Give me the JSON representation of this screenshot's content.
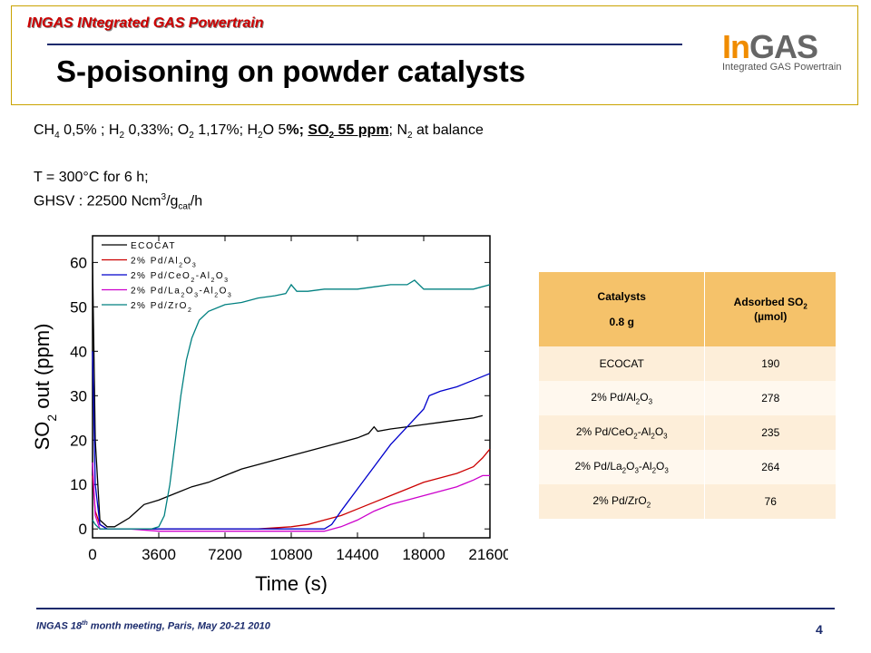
{
  "header": {
    "project_label": "INGAS INtegrated GAS Powertrain",
    "title": "S-poisoning on powder catalysts",
    "logo_in": "In",
    "logo_gas": "GAS",
    "logo_sub": "Integrated GAS Powertrain"
  },
  "conditions": {
    "line1_parts": [
      "CH",
      "4",
      " 0,5% ; H",
      "2",
      " 0,33%; O",
      "2",
      " 1,17%; H",
      "2",
      "O 5",
      "%; ",
      "SO",
      "2",
      " 55 ppm",
      "; N",
      "2",
      " at balance"
    ],
    "line2": "T = 300°C for 6 h;",
    "line3_parts": [
      "GHSV : 22500 Ncm",
      "3",
      "/g",
      "cat",
      "/h"
    ]
  },
  "table": {
    "col1_header_line1": "Catalysts",
    "col1_header_line2": "0.8 g",
    "col2_header_line1": "Adsorbed SO",
    "col2_header_sub": "2",
    "col2_header_line2": "(µmol)",
    "rows": [
      {
        "catalyst": [
          "ECOCAT"
        ],
        "value": "190"
      },
      {
        "catalyst": [
          "2% Pd/Al",
          "2",
          "O",
          "3"
        ],
        "value": "278"
      },
      {
        "catalyst": [
          "2% Pd/CeO",
          "2",
          "-Al",
          "2",
          "O",
          "3"
        ],
        "value": "235"
      },
      {
        "catalyst": [
          "2% Pd/La",
          "2",
          "O",
          "3",
          "-Al",
          "2",
          "O",
          "3"
        ],
        "value": "264"
      },
      {
        "catalyst": [
          "2% Pd/ZrO",
          "2"
        ],
        "value": "76"
      }
    ]
  },
  "footer": {
    "text_before": "INGAS 18",
    "text_sup": "th",
    "text_after": " month meeting, Paris, May 20-21 2010",
    "page_number": "4"
  },
  "chart_data": {
    "type": "line",
    "xlabel": "Time (s)",
    "ylabel_main": "SO",
    "ylabel_sub": "2",
    "ylabel_rest": " out (ppm)",
    "xlim": [
      0,
      21600
    ],
    "ylim": [
      -2,
      66
    ],
    "xticks": [
      0,
      3600,
      7200,
      10800,
      14400,
      18000,
      21600
    ],
    "yticks": [
      0,
      10,
      20,
      30,
      40,
      50,
      60
    ],
    "legend_position": "top-left",
    "series": [
      {
        "name_parts": [
          "ECOCAT"
        ],
        "color": "#000000",
        "points": [
          [
            0,
            60
          ],
          [
            150,
            20
          ],
          [
            400,
            2
          ],
          [
            800,
            0.5
          ],
          [
            1200,
            0.5
          ],
          [
            1600,
            1.5
          ],
          [
            2000,
            2.5
          ],
          [
            2400,
            4
          ],
          [
            2800,
            5.5
          ],
          [
            3600,
            6.5
          ],
          [
            4500,
            8
          ],
          [
            5400,
            9.5
          ],
          [
            6300,
            10.5
          ],
          [
            7200,
            12
          ],
          [
            8100,
            13.5
          ],
          [
            9000,
            14.5
          ],
          [
            9900,
            15.5
          ],
          [
            10800,
            16.5
          ],
          [
            11700,
            17.5
          ],
          [
            12600,
            18.5
          ],
          [
            13500,
            19.5
          ],
          [
            14400,
            20.5
          ],
          [
            15000,
            21.5
          ],
          [
            15300,
            23
          ],
          [
            15500,
            22
          ],
          [
            16200,
            22.5
          ],
          [
            17100,
            23
          ],
          [
            18000,
            23.5
          ],
          [
            18900,
            24
          ],
          [
            19800,
            24.5
          ],
          [
            20700,
            25
          ],
          [
            21200,
            25.5
          ]
        ]
      },
      {
        "name_parts": [
          "2% Pd/Al",
          "2",
          "O",
          "3"
        ],
        "color": "#cc0000",
        "points": [
          [
            0,
            12
          ],
          [
            150,
            4
          ],
          [
            400,
            1
          ],
          [
            800,
            0
          ],
          [
            2000,
            0
          ],
          [
            3600,
            0
          ],
          [
            5400,
            0
          ],
          [
            7200,
            0
          ],
          [
            9000,
            0
          ],
          [
            10800,
            0.5
          ],
          [
            11700,
            1
          ],
          [
            12600,
            2
          ],
          [
            13500,
            3
          ],
          [
            14400,
            4.5
          ],
          [
            15300,
            6
          ],
          [
            16200,
            7.5
          ],
          [
            17100,
            9
          ],
          [
            18000,
            10.5
          ],
          [
            18900,
            11.5
          ],
          [
            19800,
            12.5
          ],
          [
            20700,
            14
          ],
          [
            21200,
            16
          ],
          [
            21600,
            18
          ]
        ]
      },
      {
        "name_parts": [
          "2% Pd/CeO",
          "2",
          "-Al",
          "2",
          "O",
          "3"
        ],
        "color": "#0000cc",
        "points": [
          [
            0,
            40
          ],
          [
            150,
            10
          ],
          [
            400,
            1
          ],
          [
            800,
            0
          ],
          [
            2000,
            0
          ],
          [
            3600,
            0
          ],
          [
            7200,
            0
          ],
          [
            10800,
            0
          ],
          [
            12600,
            0
          ],
          [
            13000,
            1
          ],
          [
            13500,
            4
          ],
          [
            14400,
            9
          ],
          [
            15300,
            14
          ],
          [
            16200,
            19
          ],
          [
            17100,
            23
          ],
          [
            18000,
            27
          ],
          [
            18300,
            30
          ],
          [
            18900,
            31
          ],
          [
            19800,
            32
          ],
          [
            20700,
            33.5
          ],
          [
            21600,
            35
          ]
        ]
      },
      {
        "name_parts": [
          "2% Pd/La",
          "2",
          "O",
          "3",
          "-Al",
          "2",
          "O",
          "3"
        ],
        "color": "#cc00cc",
        "points": [
          [
            0,
            15
          ],
          [
            150,
            3
          ],
          [
            400,
            0
          ],
          [
            2000,
            0
          ],
          [
            3600,
            -0.5
          ],
          [
            5400,
            -0.5
          ],
          [
            7200,
            -0.5
          ],
          [
            9000,
            -0.5
          ],
          [
            10800,
            -0.5
          ],
          [
            12600,
            -0.5
          ],
          [
            13500,
            0.5
          ],
          [
            14400,
            2
          ],
          [
            15300,
            4
          ],
          [
            16200,
            5.5
          ],
          [
            17100,
            6.5
          ],
          [
            18000,
            7.5
          ],
          [
            18900,
            8.5
          ],
          [
            19800,
            9.5
          ],
          [
            20700,
            11
          ],
          [
            21200,
            12
          ],
          [
            21600,
            12
          ]
        ]
      },
      {
        "name_parts": [
          "2% Pd/ZrO",
          "2"
        ],
        "color": "#008080",
        "points": [
          [
            0,
            2
          ],
          [
            150,
            1
          ],
          [
            400,
            0
          ],
          [
            2000,
            0
          ],
          [
            3200,
            0
          ],
          [
            3600,
            0.5
          ],
          [
            3900,
            3
          ],
          [
            4200,
            10
          ],
          [
            4500,
            20
          ],
          [
            4800,
            30
          ],
          [
            5100,
            38
          ],
          [
            5400,
            43
          ],
          [
            5800,
            47
          ],
          [
            6300,
            49
          ],
          [
            7200,
            50.5
          ],
          [
            8100,
            51
          ],
          [
            9000,
            52
          ],
          [
            9900,
            52.5
          ],
          [
            10500,
            53
          ],
          [
            10800,
            55
          ],
          [
            11100,
            53.5
          ],
          [
            11700,
            53.5
          ],
          [
            12600,
            54
          ],
          [
            13500,
            54
          ],
          [
            14400,
            54
          ],
          [
            15300,
            54.5
          ],
          [
            16200,
            55
          ],
          [
            17100,
            55
          ],
          [
            17500,
            56
          ],
          [
            18000,
            54
          ],
          [
            18900,
            54
          ],
          [
            19800,
            54
          ],
          [
            20700,
            54
          ],
          [
            21600,
            55
          ]
        ]
      }
    ]
  }
}
